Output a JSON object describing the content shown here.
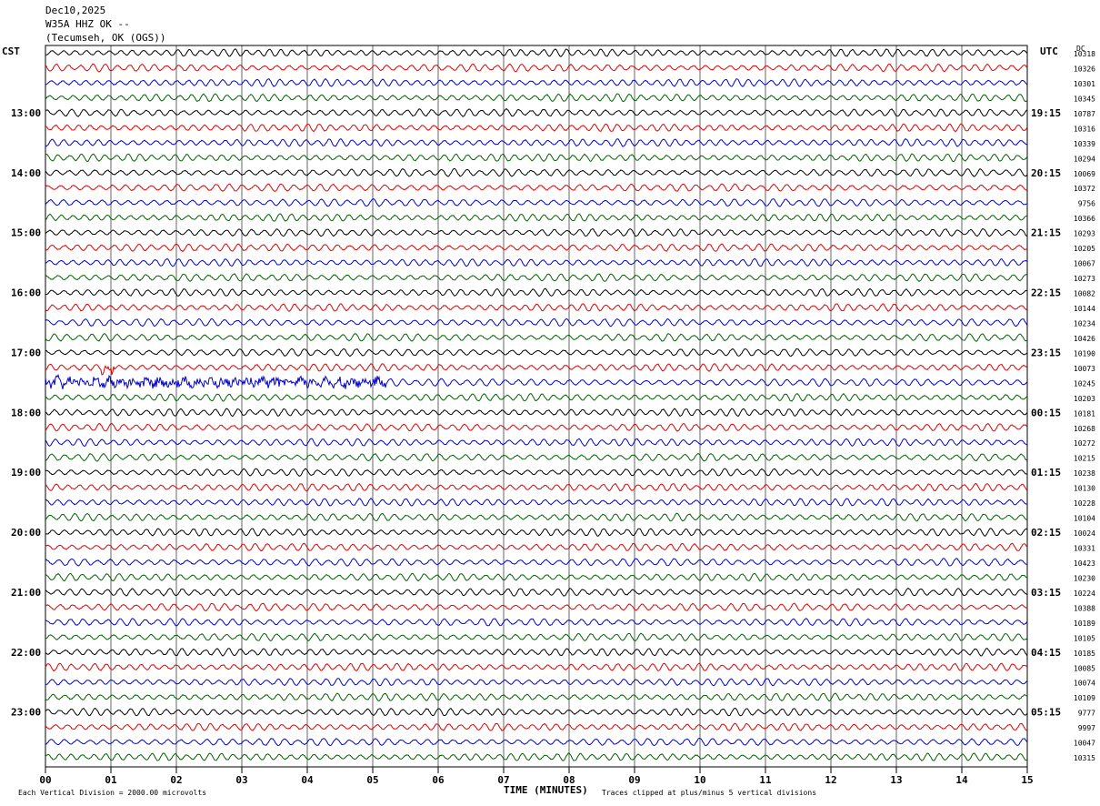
{
  "header": {
    "date": "Dec10,2025",
    "station": "W35A HHZ OK --",
    "location": "(Tecumseh, OK (OGS))"
  },
  "chart_data": {
    "type": "line",
    "left_timezone": "CST",
    "right_timezone": "UTC",
    "dc_header": "DC",
    "xlabel": "TIME (MINUTES)",
    "xlim": [
      0,
      15
    ],
    "x_ticks": [
      "00",
      "01",
      "02",
      "03",
      "04",
      "05",
      "06",
      "07",
      "08",
      "09",
      "10",
      "11",
      "12",
      "13",
      "14",
      "15"
    ],
    "left_hour_labels": [
      "13:00",
      "14:00",
      "15:00",
      "16:00",
      "17:00",
      "18:00",
      "19:00",
      "20:00",
      "21:00",
      "22:00",
      "23:00"
    ],
    "right_hour_labels": [
      "19:15",
      "20:15",
      "21:15",
      "22:15",
      "23:15",
      "00:15",
      "01:15",
      "02:15",
      "03:15",
      "04:15",
      "05:15"
    ],
    "trace_colors": [
      "#000000",
      "#e00000",
      "#0000d0",
      "#006000"
    ],
    "dc_offsets": [
      10318,
      10326,
      10301,
      10345,
      10787,
      10316,
      10339,
      10294,
      10069,
      10372,
      9756,
      10366,
      10293,
      10205,
      10067,
      10273,
      10082,
      10144,
      10234,
      10426,
      10190,
      10073,
      10245,
      10203,
      10181,
      10268,
      10272,
      10215,
      10238,
      10130,
      10228,
      10104,
      10024,
      10331,
      10423,
      10230,
      10224,
      10388,
      10189,
      10105,
      10185,
      10085,
      10074,
      10109,
      9777,
      9997,
      10047,
      10315
    ],
    "events": [
      {
        "row": 21,
        "minute_start": 0.85,
        "minute_end": 1.05,
        "amplitude": 2.6
      },
      {
        "row": 22,
        "minute_start": 0.0,
        "minute_end": 5.2,
        "amplitude": 1.4
      }
    ],
    "scale_note": "Each Vertical Division = 2000.00 microvolts",
    "clip_note": "Traces clipped at plus/minus 5 vertical divisions"
  }
}
